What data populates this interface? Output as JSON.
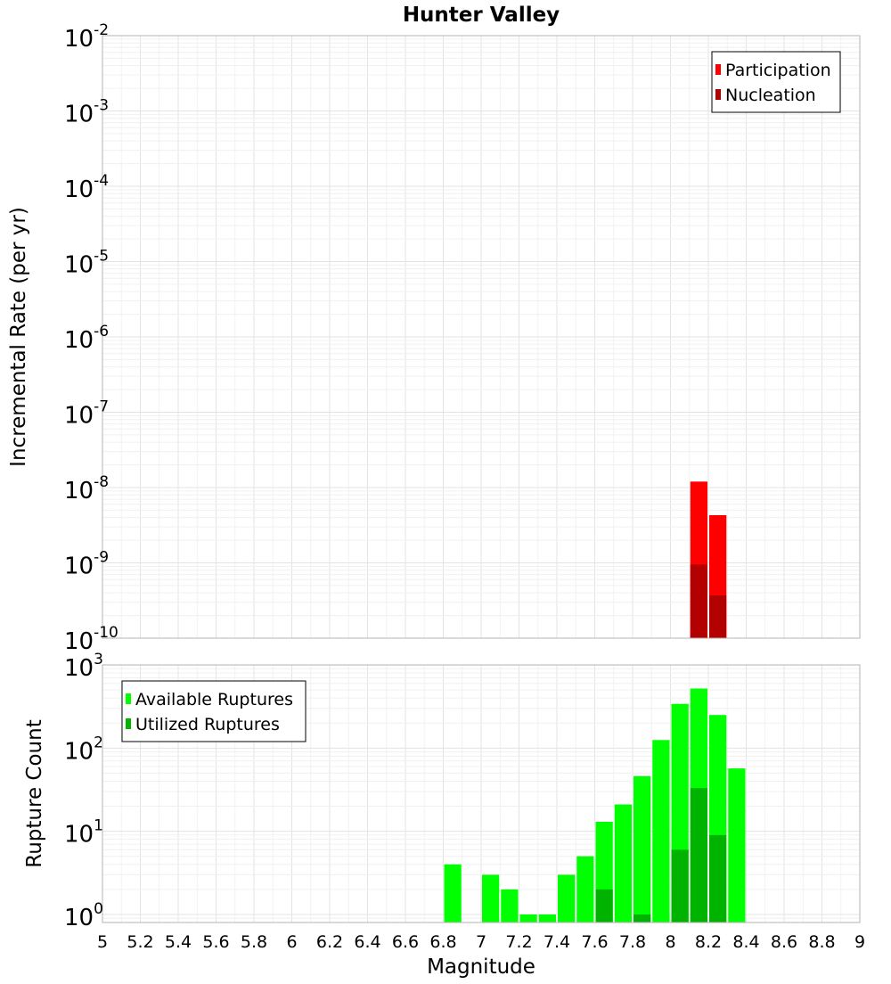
{
  "chart_data": [
    {
      "type": "bar",
      "title": "Hunter Valley",
      "xlabel": "",
      "ylabel": "Incremental Rate (per yr)",
      "yscale": "log",
      "xlim": [
        5,
        9
      ],
      "ylim": [
        1e-10,
        0.01
      ],
      "y_tick_exponents": [
        "-10",
        "-9",
        "-8",
        "-7",
        "-6",
        "-5",
        "-4",
        "-3",
        "-2"
      ],
      "grid": true,
      "legend_position": "top-right",
      "bar_width": 0.1,
      "series": [
        {
          "name": "Participation",
          "color": "#ff0000",
          "x": [
            8.15,
            8.25
          ],
          "values": [
            1.2e-08,
            4.3e-09
          ]
        },
        {
          "name": "Nucleation",
          "color": "#b30000",
          "x": [
            8.15,
            8.25
          ],
          "values": [
            9.5e-10,
            3.7e-10
          ]
        }
      ]
    },
    {
      "type": "bar",
      "title": "",
      "xlabel": "Magnitude",
      "ylabel": "Rupture Count",
      "yscale": "log",
      "xlim": [
        5,
        9
      ],
      "ylim": [
        0.8,
        1000
      ],
      "y_tick_exponents": [
        "0",
        "1",
        "2",
        "3"
      ],
      "x_ticks": [
        "5",
        "5.2",
        "5.4",
        "5.6",
        "5.8",
        "6",
        "6.2",
        "6.4",
        "6.6",
        "6.8",
        "7",
        "7.2",
        "7.4",
        "7.6",
        "7.8",
        "8",
        "8.2",
        "8.4",
        "8.6",
        "8.8",
        "9"
      ],
      "grid": true,
      "legend_position": "top-left",
      "bar_width": 0.1,
      "series": [
        {
          "name": "Available Ruptures",
          "color": "#00ff00",
          "x": [
            6.85,
            7.05,
            7.15,
            7.25,
            7.35,
            7.45,
            7.55,
            7.65,
            7.75,
            7.85,
            7.95,
            8.05,
            8.15,
            8.25,
            8.35
          ],
          "values": [
            4,
            3,
            2,
            1,
            1,
            3,
            5,
            13,
            21,
            46,
            125,
            340,
            520,
            250,
            57
          ]
        },
        {
          "name": "Utilized Ruptures",
          "color": "#00b300",
          "x": [
            7.65,
            7.85,
            8.05,
            8.15,
            8.25
          ],
          "values": [
            2,
            1,
            6,
            33,
            9
          ]
        }
      ]
    }
  ]
}
